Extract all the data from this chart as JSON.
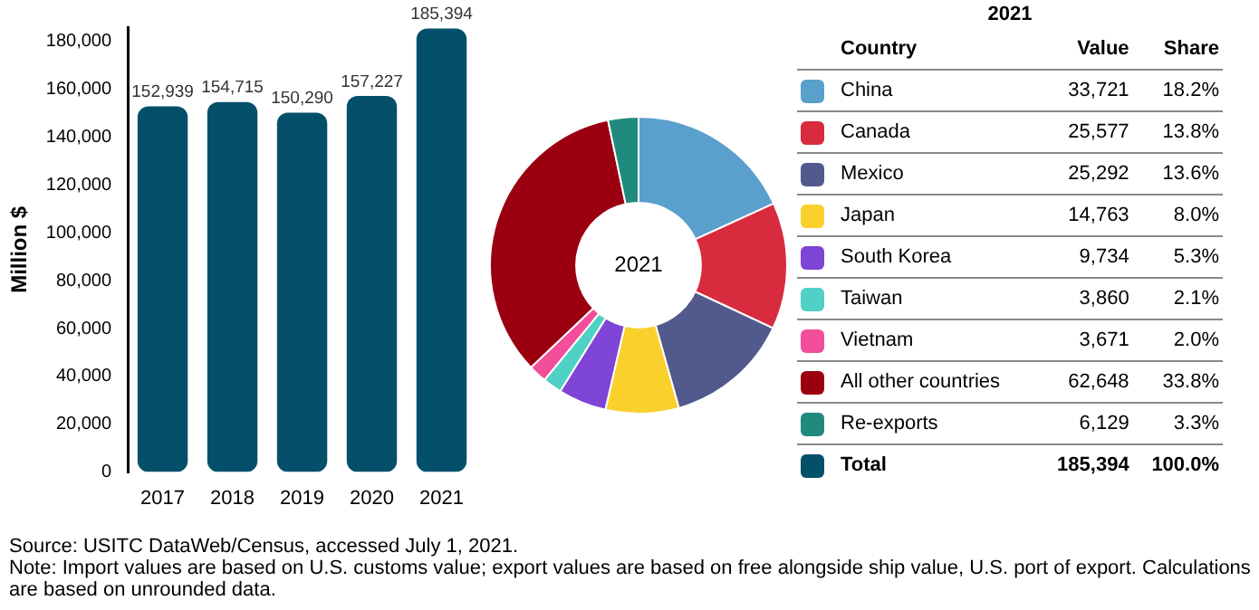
{
  "chart_data": [
    {
      "type": "bar",
      "ylabel": "Million $",
      "categories": [
        "2017",
        "2018",
        "2019",
        "2020",
        "2021"
      ],
      "values": [
        152939,
        154715,
        150290,
        157227,
        185394
      ],
      "color": "#04506b",
      "ylim": [
        0,
        186000
      ],
      "yticks": [
        {
          "value": 0,
          "label": "0"
        },
        {
          "value": 20000,
          "label": "20,000"
        },
        {
          "value": 40000,
          "label": "40,000"
        },
        {
          "value": 60000,
          "label": "60,000"
        },
        {
          "value": 80000,
          "label": "80,000"
        },
        {
          "value": 100000,
          "label": "100,000"
        },
        {
          "value": 120000,
          "label": "120,000"
        },
        {
          "value": 140000,
          "label": "140,000"
        },
        {
          "value": 160000,
          "label": "160,000"
        },
        {
          "value": 180000,
          "label": "180,000"
        }
      ],
      "grid": false,
      "legend": false,
      "value_labels": [
        "152,939",
        "154,715",
        "150,290",
        "157,227",
        "185,394"
      ],
      "annotations": [
        "Source: USITC DataWeb/Census, accessed July 1, 2021.",
        "Note: Import values are based on U.S. customs value; export values are based on free alongside ship value, U.S. port of export. Calculations are based on unrounded data."
      ]
    },
    {
      "type": "donut",
      "title": "2021",
      "legend_title": "2021",
      "legend": "right",
      "categories": [
        "China",
        "Canada",
        "Mexico",
        "Japan",
        "South Korea",
        "Taiwan",
        "Vietnam",
        "All other countries",
        "Re-exports"
      ],
      "values": [
        33721,
        25577,
        25292,
        14763,
        9734,
        3860,
        3671,
        62648,
        6129
      ],
      "colors": [
        "#5aa0cc",
        "#d92b3e",
        "#525a8d",
        "#fad02c",
        "#7f45d6",
        "#4fd1c5",
        "#f24e9a",
        "#9a0010",
        "#1f8a7d"
      ],
      "value_labels": [
        "33,721",
        "25,577",
        "25,292",
        "14,763",
        "9,734",
        "3,860",
        "3,671",
        "62,648",
        "6,129"
      ],
      "annotations": [
        "Country",
        "Value",
        "Share",
        {
          "text": "18.2%",
          "x": "China"
        },
        {
          "text": "13.8%",
          "x": "Canada"
        },
        {
          "text": "13.6%",
          "x": "Mexico"
        },
        {
          "text": "8.0%",
          "x": "Japan"
        },
        {
          "text": "5.3%",
          "x": "South Korea"
        },
        {
          "text": "2.1%",
          "x": "Taiwan"
        },
        {
          "text": "2.0%",
          "x": "Vietnam"
        },
        {
          "text": "33.8%",
          "x": "All other countries"
        },
        {
          "text": "3.3%",
          "x": "Re-exports"
        },
        "Total",
        "185,394",
        "100.0%"
      ]
    }
  ]
}
